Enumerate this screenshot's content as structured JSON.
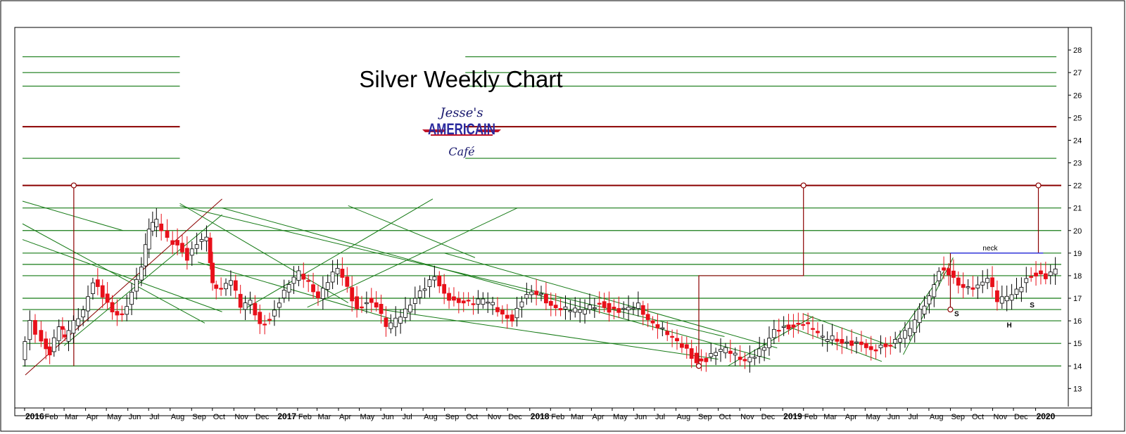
{
  "chart_data": {
    "type": "candlestick",
    "title": "Silver Weekly Chart",
    "logo": {
      "line1": "Jesse's",
      "line2": "AMERICAIN",
      "line3": "Café"
    },
    "colors": {
      "up": "#ffffff",
      "down": "#e8101a",
      "wick": "#000000",
      "support": "#157a15",
      "resistance": "#8b0000",
      "neck": "#2a2ae0",
      "frame": "#000000"
    },
    "ylim": [
      12.2,
      29
    ],
    "y_ticks": [
      13,
      14,
      15,
      16,
      17,
      18,
      19,
      20,
      21,
      22,
      23,
      24,
      25,
      26,
      27,
      28
    ],
    "x_range": [
      "2016-01-01",
      "2020-02-08"
    ],
    "x_ticks": [
      {
        "label": "2016",
        "date": "2016-01-04",
        "bold": true
      },
      {
        "label": "Feb",
        "date": "2016-02-01"
      },
      {
        "label": "Mar",
        "date": "2016-03-01"
      },
      {
        "label": "Apr",
        "date": "2016-04-01"
      },
      {
        "label": "May",
        "date": "2016-05-01"
      },
      {
        "label": "Jun",
        "date": "2016-06-01"
      },
      {
        "label": "Jul",
        "date": "2016-07-01"
      },
      {
        "label": "Aug",
        "date": "2016-08-01"
      },
      {
        "label": "Sep",
        "date": "2016-09-01"
      },
      {
        "label": "Oct",
        "date": "2016-10-01"
      },
      {
        "label": "Nov",
        "date": "2016-11-01"
      },
      {
        "label": "Dec",
        "date": "2016-12-01"
      },
      {
        "label": "2017",
        "date": "2017-01-02",
        "bold": true
      },
      {
        "label": "Feb",
        "date": "2017-02-01"
      },
      {
        "label": "Mar",
        "date": "2017-03-01"
      },
      {
        "label": "Apr",
        "date": "2017-04-01"
      },
      {
        "label": "May",
        "date": "2017-05-01"
      },
      {
        "label": "Jun",
        "date": "2017-06-01"
      },
      {
        "label": "Jul",
        "date": "2017-07-01"
      },
      {
        "label": "Aug",
        "date": "2017-08-01"
      },
      {
        "label": "Sep",
        "date": "2017-09-01"
      },
      {
        "label": "Oct",
        "date": "2017-10-01"
      },
      {
        "label": "Nov",
        "date": "2017-11-01"
      },
      {
        "label": "Dec",
        "date": "2017-12-01"
      },
      {
        "label": "2018",
        "date": "2018-01-02",
        "bold": true
      },
      {
        "label": "Feb",
        "date": "2018-02-01"
      },
      {
        "label": "Mar",
        "date": "2018-03-01"
      },
      {
        "label": "Apr",
        "date": "2018-04-01"
      },
      {
        "label": "May",
        "date": "2018-05-01"
      },
      {
        "label": "Jun",
        "date": "2018-06-01"
      },
      {
        "label": "Jul",
        "date": "2018-07-01"
      },
      {
        "label": "Aug",
        "date": "2018-08-01"
      },
      {
        "label": "Sep",
        "date": "2018-09-01"
      },
      {
        "label": "Oct",
        "date": "2018-10-01"
      },
      {
        "label": "Nov",
        "date": "2018-11-01"
      },
      {
        "label": "Dec",
        "date": "2018-12-01"
      },
      {
        "label": "2019",
        "date": "2019-01-02",
        "bold": true
      },
      {
        "label": "Feb",
        "date": "2019-02-01"
      },
      {
        "label": "Mar",
        "date": "2019-03-01"
      },
      {
        "label": "Apr",
        "date": "2019-04-01"
      },
      {
        "label": "May",
        "date": "2019-05-01"
      },
      {
        "label": "Jun",
        "date": "2019-06-01"
      },
      {
        "label": "Jul",
        "date": "2019-07-01"
      },
      {
        "label": "Aug",
        "date": "2019-08-01"
      },
      {
        "label": "Sep",
        "date": "2019-09-01"
      },
      {
        "label": "Oct",
        "date": "2019-10-01"
      },
      {
        "label": "Nov",
        "date": "2019-11-01"
      },
      {
        "label": "Dec",
        "date": "2019-12-01"
      },
      {
        "label": "2020",
        "date": "2020-01-02",
        "bold": true
      }
    ],
    "horizontal_lines": [
      {
        "value": 27.7,
        "color": "support",
        "segments": [
          [
            "2016-01-01",
            "2016-08-15"
          ],
          [
            "2017-10-01",
            "2020-02-01"
          ]
        ]
      },
      {
        "value": 27.0,
        "color": "support",
        "segments": [
          [
            "2016-01-01",
            "2016-08-15"
          ],
          [
            "2017-10-01",
            "2020-02-01"
          ]
        ]
      },
      {
        "value": 26.4,
        "color": "support",
        "segments": [
          [
            "2016-01-01",
            "2016-08-15"
          ],
          [
            "2017-10-01",
            "2020-02-01"
          ]
        ]
      },
      {
        "value": 24.6,
        "color": "resistance",
        "segments": [
          [
            "2016-01-01",
            "2016-08-15"
          ],
          [
            "2017-10-01",
            "2020-02-01"
          ]
        ]
      },
      {
        "value": 23.2,
        "color": "support",
        "segments": [
          [
            "2016-01-01",
            "2016-08-15"
          ],
          [
            "2017-10-01",
            "2020-02-01"
          ]
        ]
      },
      {
        "value": 22.0,
        "color": "resistance",
        "segments": [
          [
            "2016-01-01",
            "2020-02-08"
          ]
        ]
      },
      {
        "value": 21.0,
        "color": "support",
        "segments": [
          [
            "2016-01-01",
            "2020-02-08"
          ]
        ]
      },
      {
        "value": 20.0,
        "color": "support",
        "segments": [
          [
            "2016-01-01",
            "2020-02-08"
          ]
        ]
      },
      {
        "value": 19.0,
        "color": "support",
        "segments": [
          [
            "2016-01-01",
            "2020-02-08"
          ]
        ]
      },
      {
        "value": 18.5,
        "color": "support",
        "segments": [
          [
            "2016-01-01",
            "2020-02-08"
          ]
        ]
      },
      {
        "value": 18.0,
        "color": "support",
        "segments": [
          [
            "2016-01-01",
            "2020-02-08"
          ]
        ]
      },
      {
        "value": 17.0,
        "color": "support",
        "segments": [
          [
            "2016-01-01",
            "2020-02-08"
          ]
        ]
      },
      {
        "value": 16.5,
        "color": "support",
        "segments": [
          [
            "2016-01-01",
            "2020-02-08"
          ]
        ]
      },
      {
        "value": 16.0,
        "color": "support",
        "segments": [
          [
            "2016-01-01",
            "2020-02-08"
          ]
        ]
      },
      {
        "value": 15.0,
        "color": "support",
        "segments": [
          [
            "2016-01-01",
            "2020-02-08"
          ]
        ]
      },
      {
        "value": 14.0,
        "color": "support",
        "segments": [
          [
            "2016-01-01",
            "2020-02-08"
          ]
        ]
      }
    ],
    "trend_lines": [
      {
        "from": [
          "2016-01-05",
          13.6
        ],
        "to": [
          "2016-10-15",
          21.4
        ],
        "color": "resistance"
      },
      {
        "from": [
          "2016-01-01",
          21.3
        ],
        "to": [
          "2016-05-25",
          20.0
        ],
        "color": "support"
      },
      {
        "from": [
          "2016-01-01",
          20.3
        ],
        "to": [
          "2016-09-20",
          15.9
        ],
        "color": "support"
      },
      {
        "from": [
          "2016-01-01",
          19.6
        ],
        "to": [
          "2016-10-15",
          16.4
        ],
        "color": "support"
      },
      {
        "from": [
          "2016-03-01",
          14.9
        ],
        "to": [
          "2016-10-15",
          20.7
        ],
        "color": "support"
      },
      {
        "from": [
          "2016-09-10",
          18.6
        ],
        "to": [
          "2017-06-15",
          16.1
        ],
        "color": "support"
      },
      {
        "from": [
          "2016-11-15",
          16.5
        ],
        "to": [
          "2017-08-15",
          21.4
        ],
        "color": "support"
      },
      {
        "from": [
          "2016-08-15",
          21.2
        ],
        "to": [
          "2017-04-15",
          16.8
        ],
        "color": "support"
      },
      {
        "from": [
          "2017-04-15",
          21.1
        ],
        "to": [
          "2017-10-15",
          18.8
        ],
        "color": "support"
      },
      {
        "from": [
          "2017-06-01",
          16.5
        ],
        "to": [
          "2018-10-01",
          14.3
        ],
        "color": "support"
      },
      {
        "from": [
          "2017-02-15",
          16.6
        ],
        "to": [
          "2017-12-15",
          21.0
        ],
        "color": "support"
      },
      {
        "from": [
          "2016-08-15",
          21.1
        ],
        "to": [
          "2018-10-10",
          15.3
        ],
        "color": "support"
      },
      {
        "from": [
          "2016-10-15",
          21.0
        ],
        "to": [
          "2018-12-15",
          14.3
        ],
        "color": "support"
      },
      {
        "from": [
          "2017-09-01",
          19.0
        ],
        "to": [
          "2018-12-25",
          14.8
        ],
        "color": "support"
      },
      {
        "from": [
          "2018-10-15",
          14.0
        ],
        "to": [
          "2019-02-15",
          16.2
        ],
        "color": "support"
      },
      {
        "from": [
          "2019-02-01",
          16.3
        ],
        "to": [
          "2019-06-15",
          14.8
        ],
        "color": "support"
      },
      {
        "from": [
          "2019-01-05",
          15.8
        ],
        "to": [
          "2019-05-25",
          14.2
        ],
        "color": "support"
      },
      {
        "from": [
          "2019-06-25",
          14.5
        ],
        "to": [
          "2019-09-05",
          18.8
        ],
        "color": "support"
      },
      {
        "from": [
          "2019-06-10",
          15.0
        ],
        "to": [
          "2019-08-25",
          18.3
        ],
        "color": "support"
      }
    ],
    "measure_lines": [
      {
        "color": "resistance",
        "points": [
          [
            "2016-03-15",
            14.0
          ],
          [
            "2016-03-15",
            22.0
          ]
        ]
      },
      {
        "color": "resistance",
        "points": [
          [
            "2018-09-03",
            14.0
          ],
          [
            "2018-09-03",
            18.0
          ],
          [
            "2019-02-01",
            18.0
          ],
          [
            "2019-02-01",
            22.0
          ]
        ]
      },
      {
        "color": "resistance",
        "points": [
          [
            "2019-09-01",
            16.5
          ],
          [
            "2019-09-01",
            19.0
          ]
        ]
      },
      {
        "color": "resistance",
        "points": [
          [
            "2020-01-06",
            19.0
          ],
          [
            "2020-01-06",
            22.0
          ]
        ]
      }
    ],
    "markers": [
      {
        "x": "2016-03-15",
        "y": 22.0
      },
      {
        "x": "2019-02-01",
        "y": 22.0
      },
      {
        "x": "2020-01-06",
        "y": 22.0
      },
      {
        "x": "2018-09-03",
        "y": 14.0
      },
      {
        "x": "2019-09-01",
        "y": 16.5
      }
    ],
    "neckline": {
      "label": "neck",
      "from": [
        "2019-09-01",
        19.0
      ],
      "to": [
        "2020-01-13",
        19.0
      ]
    },
    "annotations": [
      {
        "text": "S",
        "x": "2019-09-10",
        "y": 16.2
      },
      {
        "text": "H",
        "x": "2019-11-25",
        "y": 15.7
      },
      {
        "text": "S",
        "x": "2019-12-28",
        "y": 16.6
      }
    ],
    "ohlc_points": [
      [
        "2016-01-01",
        14.2
      ],
      [
        "2016-01-15",
        15.9
      ],
      [
        "2016-02-01",
        15.1
      ],
      [
        "2016-02-12",
        14.6
      ],
      [
        "2016-02-26",
        15.8
      ],
      [
        "2016-03-04",
        15.2
      ],
      [
        "2016-03-18",
        15.9
      ],
      [
        "2016-04-01",
        16.5
      ],
      [
        "2016-04-15",
        17.8
      ],
      [
        "2016-04-29",
        17.1
      ],
      [
        "2016-05-13",
        16.3
      ],
      [
        "2016-05-27",
        16.2
      ],
      [
        "2016-06-10",
        17.3
      ],
      [
        "2016-06-24",
        18.5
      ],
      [
        "2016-07-04",
        20.1
      ],
      [
        "2016-07-15",
        20.4
      ],
      [
        "2016-08-01",
        19.6
      ],
      [
        "2016-08-15",
        19.4
      ],
      [
        "2016-08-29",
        18.8
      ],
      [
        "2016-09-12",
        19.4
      ],
      [
        "2016-09-26",
        19.6
      ],
      [
        "2016-10-03",
        17.6
      ],
      [
        "2016-10-17",
        17.5
      ],
      [
        "2016-10-31",
        17.9
      ],
      [
        "2016-11-14",
        16.6
      ],
      [
        "2016-11-28",
        16.8
      ],
      [
        "2016-12-12",
        15.8
      ],
      [
        "2016-12-26",
        16.1
      ],
      [
        "2017-01-09",
        16.9
      ],
      [
        "2017-01-23",
        17.6
      ],
      [
        "2017-02-06",
        18.1
      ],
      [
        "2017-02-20",
        17.7
      ],
      [
        "2017-03-06",
        17.1
      ],
      [
        "2017-03-20",
        17.8
      ],
      [
        "2017-04-03",
        18.3
      ],
      [
        "2017-04-17",
        17.4
      ],
      [
        "2017-05-01",
        16.5
      ],
      [
        "2017-05-15",
        16.9
      ],
      [
        "2017-05-29",
        16.7
      ],
      [
        "2017-06-12",
        15.7
      ],
      [
        "2017-06-26",
        16.0
      ],
      [
        "2017-07-10",
        16.5
      ],
      [
        "2017-07-24",
        17.1
      ],
      [
        "2017-08-07",
        17.5
      ],
      [
        "2017-08-21",
        17.9
      ],
      [
        "2017-09-04",
        17.1
      ],
      [
        "2017-09-18",
        16.9
      ],
      [
        "2017-10-02",
        16.9
      ],
      [
        "2017-10-16",
        16.8
      ],
      [
        "2017-10-30",
        16.9
      ],
      [
        "2017-11-13",
        16.7
      ],
      [
        "2017-11-27",
        16.3
      ],
      [
        "2017-12-11",
        16.1
      ],
      [
        "2017-12-25",
        16.9
      ],
      [
        "2018-01-08",
        17.2
      ],
      [
        "2018-01-22",
        17.1
      ],
      [
        "2018-02-05",
        16.7
      ],
      [
        "2018-02-19",
        16.6
      ],
      [
        "2018-03-05",
        16.5
      ],
      [
        "2018-03-19",
        16.4
      ],
      [
        "2018-04-02",
        16.6
      ],
      [
        "2018-04-16",
        16.8
      ],
      [
        "2018-04-30",
        16.5
      ],
      [
        "2018-05-14",
        16.4
      ],
      [
        "2018-05-28",
        16.5
      ],
      [
        "2018-06-11",
        16.7
      ],
      [
        "2018-06-25",
        16.1
      ],
      [
        "2018-07-09",
        15.8
      ],
      [
        "2018-07-23",
        15.4
      ],
      [
        "2018-08-06",
        15.0
      ],
      [
        "2018-08-20",
        14.7
      ],
      [
        "2018-09-03",
        14.2
      ],
      [
        "2018-09-17",
        14.3
      ],
      [
        "2018-10-01",
        14.6
      ],
      [
        "2018-10-15",
        14.7
      ],
      [
        "2018-10-29",
        14.5
      ],
      [
        "2018-11-12",
        14.3
      ],
      [
        "2018-11-26",
        14.5
      ],
      [
        "2018-12-10",
        14.8
      ],
      [
        "2018-12-24",
        15.5
      ],
      [
        "2019-01-07",
        15.7
      ],
      [
        "2019-01-21",
        15.8
      ],
      [
        "2019-02-04",
        15.9
      ],
      [
        "2019-02-18",
        15.6
      ],
      [
        "2019-03-04",
        15.2
      ],
      [
        "2019-03-18",
        15.3
      ],
      [
        "2019-04-01",
        15.1
      ],
      [
        "2019-04-15",
        15.0
      ],
      [
        "2019-04-29",
        14.9
      ],
      [
        "2019-05-13",
        14.6
      ],
      [
        "2019-05-27",
        14.9
      ],
      [
        "2019-06-10",
        15.0
      ],
      [
        "2019-06-24",
        15.3
      ],
      [
        "2019-07-08",
        15.6
      ],
      [
        "2019-07-22",
        16.4
      ],
      [
        "2019-08-05",
        17.1
      ],
      [
        "2019-08-19",
        18.3
      ],
      [
        "2019-09-02",
        18.1
      ],
      [
        "2019-09-16",
        17.5
      ],
      [
        "2019-09-30",
        17.4
      ],
      [
        "2019-10-14",
        17.6
      ],
      [
        "2019-10-28",
        18.0
      ],
      [
        "2019-11-11",
        16.9
      ],
      [
        "2019-11-25",
        17.0
      ],
      [
        "2019-12-09",
        17.3
      ],
      [
        "2019-12-23",
        17.9
      ],
      [
        "2020-01-06",
        18.1
      ],
      [
        "2020-01-20",
        17.9
      ],
      [
        "2020-02-03",
        18.2
      ]
    ]
  }
}
